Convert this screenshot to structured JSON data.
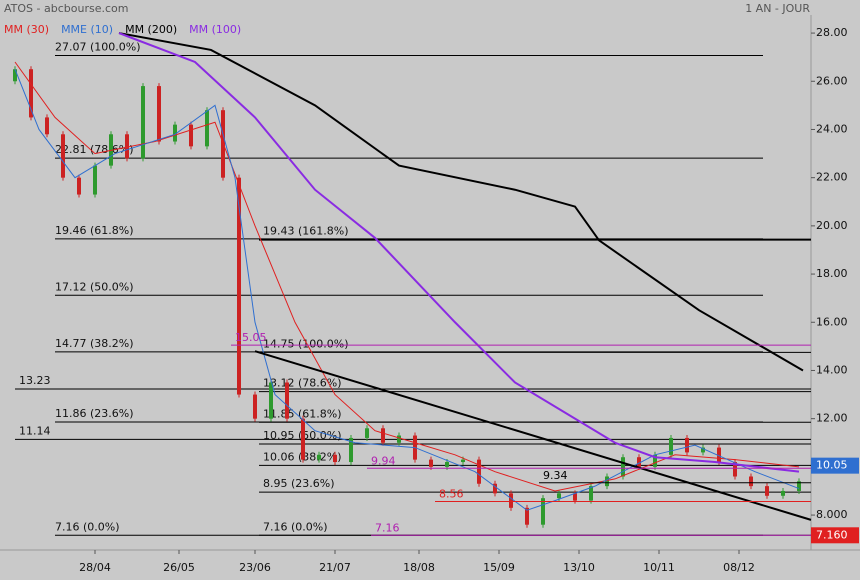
{
  "chart_data": {
    "type": "candlestick",
    "title": "ATOS - abcbourse.com",
    "subtitle": "1 AN - JOUR",
    "xlim": [
      0,
      199
    ],
    "xticks": [
      {
        "value": 20,
        "label": "28/04"
      },
      {
        "value": 41,
        "label": "26/05"
      },
      {
        "value": 60,
        "label": "23/06"
      },
      {
        "value": 80,
        "label": "21/07"
      },
      {
        "value": 101,
        "label": "18/08"
      },
      {
        "value": 121,
        "label": "15/09"
      },
      {
        "value": 141,
        "label": "13/10"
      },
      {
        "value": 161,
        "label": "10/11"
      },
      {
        "value": 181,
        "label": "08/12"
      }
    ],
    "ylim": [
      6.55,
      28.75
    ],
    "yticks": [
      8,
      10,
      12,
      14,
      16,
      18,
      20,
      22,
      24,
      26,
      28
    ],
    "y_ticks_formatted": [
      {
        "value": 8,
        "label": "8.000"
      },
      {
        "value": 10,
        "label": "10.00"
      },
      {
        "value": 12,
        "label": "12.00"
      },
      {
        "value": 14,
        "label": "14.00"
      },
      {
        "value": 16,
        "label": "16.00"
      },
      {
        "value": 18,
        "label": "18.00"
      },
      {
        "value": 20,
        "label": "20.00"
      },
      {
        "value": 22,
        "label": "22.00"
      },
      {
        "value": 24,
        "label": "24.00"
      },
      {
        "value": 26,
        "label": "26.00"
      },
      {
        "value": 28,
        "label": "28.00"
      }
    ],
    "up_color": "#2e9a2e",
    "down_color": "#cc2222",
    "x": [
      0,
      4,
      8,
      12,
      16,
      20,
      24,
      28,
      32,
      36,
      40,
      44,
      48,
      52,
      56,
      60,
      64,
      68,
      72,
      76,
      80,
      84,
      88,
      92,
      96,
      100,
      104,
      108,
      112,
      116,
      120,
      124,
      128,
      132,
      136,
      140,
      144,
      148,
      152,
      156,
      160,
      164,
      168,
      172,
      176,
      180,
      184,
      188,
      192,
      196
    ],
    "open": [
      26,
      26.5,
      24.5,
      23.8,
      22,
      21.3,
      22.5,
      23.8,
      22.8,
      25.8,
      23.5,
      24.2,
      23.3,
      24.8,
      22,
      13,
      12,
      13.5,
      12,
      10.3,
      10.5,
      10.2,
      11.2,
      11.6,
      11,
      11.3,
      10.3,
      10,
      10.2,
      10.3,
      9.3,
      8.9,
      8.3,
      7.6,
      8.7,
      8.9,
      8.6,
      9.2,
      9.6,
      10.4,
      10,
      10.5,
      11.2,
      10.6,
      10.8,
      10.2,
      9.6,
      9.2,
      8.8,
      9
    ],
    "close": [
      26.5,
      24.5,
      23.8,
      22,
      21.3,
      22.5,
      23.8,
      22.8,
      25.8,
      23.5,
      24.2,
      23.3,
      24.8,
      22,
      13,
      12,
      13.5,
      12,
      10.3,
      10.5,
      10.2,
      11.2,
      11.6,
      11,
      11.3,
      10.3,
      10,
      10.2,
      10.3,
      9.3,
      8.9,
      8.3,
      7.6,
      8.7,
      8.9,
      8.6,
      9.2,
      9.6,
      10.4,
      10,
      10.5,
      11.2,
      10.6,
      10.8,
      10.2,
      9.6,
      9.2,
      8.8,
      9,
      9.4
    ],
    "series": [
      {
        "name": "MM (30)",
        "color": "#e02020",
        "width": 1,
        "x": [
          0,
          10,
          20,
          35,
          50,
          60,
          70,
          80,
          90,
          100,
          110,
          120,
          135,
          150,
          165,
          180,
          196
        ],
        "values": [
          26.8,
          24.5,
          23,
          23.5,
          24.3,
          20,
          16,
          13,
          11.5,
          11,
          10.5,
          9.8,
          9,
          9.5,
          10.5,
          10.3,
          10
        ]
      },
      {
        "name": "MME (10)",
        "color": "#2f6fd0",
        "width": 1,
        "x": [
          0,
          6,
          15,
          25,
          40,
          50,
          55,
          60,
          65,
          75,
          85,
          100,
          115,
          128,
          135,
          145,
          160,
          170,
          185,
          196
        ],
        "values": [
          26.5,
          24,
          22,
          23,
          23.8,
          25,
          22,
          16,
          13,
          11.5,
          11,
          10.8,
          9.8,
          8.2,
          8.6,
          9.2,
          10.5,
          10.9,
          9.8,
          9.1
        ]
      },
      {
        "name": "MM (200)",
        "color": "#000000",
        "width": 2,
        "x": [
          26,
          49,
          75,
          96,
          125,
          140,
          146,
          171,
          197
        ],
        "values": [
          28,
          27.3,
          25,
          22.5,
          21.5,
          20.8,
          19.4,
          16.5,
          14
        ]
      },
      {
        "name": "MM (100)",
        "color": "#8a2be2",
        "width": 2,
        "x": [
          26,
          45,
          60,
          75,
          90,
          110,
          125,
          140,
          150,
          160,
          175,
          196
        ],
        "values": [
          28,
          26.8,
          24.5,
          21.5,
          19.5,
          16,
          13.5,
          12,
          11,
          10.4,
          10.2,
          9.8
        ]
      }
    ],
    "trendline": {
      "x": [
        60,
        199
      ],
      "values": [
        14.8,
        7.8
      ]
    },
    "fib_left": [
      {
        "value": 27.07,
        "label": "27.07  (100.0%)"
      },
      {
        "value": 22.81,
        "label": "22.81  (78.6%)"
      },
      {
        "value": 19.46,
        "label": "19.46  (61.8%)"
      },
      {
        "value": 17.12,
        "label": "17.12  (50.0%)"
      },
      {
        "value": 14.77,
        "label": "14.77  (38.2%)"
      },
      {
        "value": 11.86,
        "label": "11.86  (23.6%)"
      },
      {
        "value": 7.16,
        "label": "7.16  (0.0%)"
      }
    ],
    "fib_right": [
      {
        "value": 19.43,
        "label": "19.43  (161.8%)"
      },
      {
        "value": 14.75,
        "label": "14.75  (100.0%)"
      },
      {
        "value": 13.12,
        "label": "13.12  (78.6%)"
      },
      {
        "value": 11.85,
        "label": "11.85  (61.8%)"
      },
      {
        "value": 10.95,
        "label": "10.95  (50.0%)"
      },
      {
        "value": 10.06,
        "label": "10.06  (38.2%)"
      },
      {
        "value": 8.95,
        "label": "8.95  (23.6%)"
      },
      {
        "value": 7.16,
        "label": "7.16  (0.0%)"
      }
    ],
    "levels": [
      {
        "value": 13.23,
        "label": "13.23"
      },
      {
        "value": 11.14,
        "label": "11.14"
      }
    ],
    "markers": [
      {
        "value": 15.05,
        "label": "15.05",
        "x": 54,
        "color": "#b020b0"
      },
      {
        "value": 9.94,
        "label": "9.94",
        "x": 88,
        "color": "#b020b0"
      },
      {
        "value": 7.16,
        "label": "7.16",
        "x": 89,
        "color": "#b020b0"
      },
      {
        "value": 8.56,
        "label": "8.56",
        "x": 105,
        "color": "#e02020"
      },
      {
        "value": 9.34,
        "label": "9.34",
        "x": 131,
        "color": "#000000"
      }
    ],
    "last_values": [
      {
        "value": 10.05,
        "label": "10.05",
        "color": "#2f6fd0"
      },
      {
        "value": 7.16,
        "label": "7.160",
        "color": "#e02020"
      }
    ]
  }
}
